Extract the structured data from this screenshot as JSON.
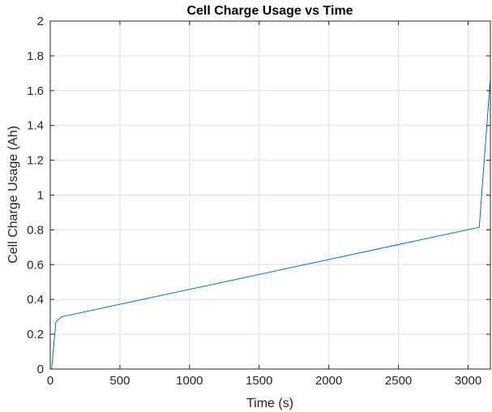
{
  "chart_data": {
    "type": "line",
    "title": "Cell Charge Usage vs Time",
    "xlabel": "Time (s)",
    "ylabel": "Cell Charge Usage (Ah)",
    "xlim": [
      0,
      3160
    ],
    "ylim": [
      0,
      2
    ],
    "xticks": [
      0,
      500,
      1000,
      1500,
      2000,
      2500,
      3000
    ],
    "yticks": [
      0,
      0.2,
      0.4,
      0.6,
      0.8,
      1,
      1.2,
      1.4,
      1.6,
      1.8,
      2
    ],
    "grid": true,
    "series": [
      {
        "color": "#0072bd",
        "x": [
          10,
          40,
          80,
          3080,
          3160
        ],
        "y": [
          0.0,
          0.27,
          0.3,
          0.815,
          1.67
        ]
      }
    ]
  }
}
